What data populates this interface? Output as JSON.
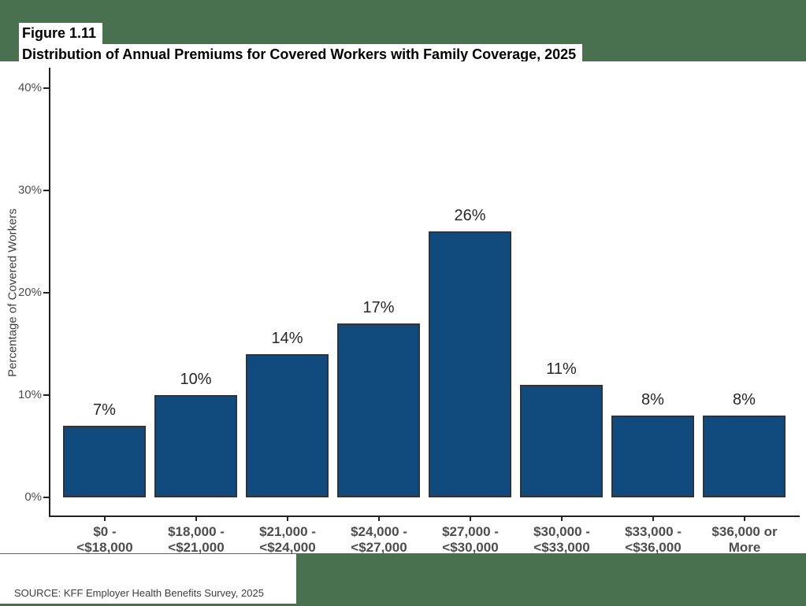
{
  "header": {
    "figure_label": "Figure 1.11",
    "title": "Distribution of Annual Premiums for Covered Workers with Family Coverage, 2025"
  },
  "chart_data": {
    "type": "bar",
    "title": "Distribution of Annual Premiums for Covered Workers with Family Coverage, 2025",
    "categories": [
      [
        "$0 -",
        "<$18,000"
      ],
      [
        "$18,000 -",
        "<$21,000"
      ],
      [
        "$21,000 -",
        "<$24,000"
      ],
      [
        "$24,000 -",
        "<$27,000"
      ],
      [
        "$27,000 -",
        "<$30,000"
      ],
      [
        "$30,000 -",
        "<$33,000"
      ],
      [
        "$33,000 -",
        "<$36,000"
      ],
      [
        "$36,000 or",
        "More"
      ]
    ],
    "values": [
      7,
      10,
      14,
      17,
      26,
      11,
      8,
      8
    ],
    "value_labels": [
      "7%",
      "10%",
      "14%",
      "17%",
      "26%",
      "11%",
      "8%",
      "8%"
    ],
    "xlabel": "",
    "ylabel": "Percentage of Covered Workers",
    "y_ticks": [
      "0%",
      "10%",
      "20%",
      "30%",
      "40%"
    ],
    "y_tick_values": [
      0,
      10,
      20,
      30,
      40
    ],
    "ylim": [
      0,
      42
    ],
    "grid": false,
    "legend": "none",
    "colors": {
      "bar_fill": "#114A7D",
      "bar_border": "#333333",
      "axis": "#222222",
      "tick_label": "#4d4d4d",
      "value_label": "#262626",
      "page_background": "#497150",
      "panel_background": "#ffffff"
    }
  },
  "footer": {
    "source": "SOURCE: KFF Employer Health Benefits Survey, 2025"
  }
}
